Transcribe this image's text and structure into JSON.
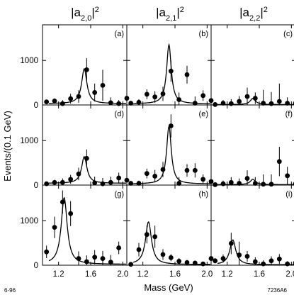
{
  "figure": {
    "column_titles": [
      {
        "base": "|a",
        "sub": "2,0",
        "close": "|",
        "sup": "2"
      },
      {
        "base": "|a",
        "sub": "2,1",
        "close": "|",
        "sup": "2"
      },
      {
        "base": "|a",
        "sub": "2,2",
        "close": "|",
        "sup": "2"
      }
    ],
    "ylabel": "Events/(0.1 GeV)",
    "xlabel": "Mass  (GeV)",
    "footer_left": "6-96",
    "footer_right": "7236A6"
  },
  "chart_data": {
    "type": "scatter",
    "layout": "3x3 grid",
    "xlim": [
      1.0,
      2.05
    ],
    "ylim": [
      0,
      1800
    ],
    "x_ticks": [
      1.2,
      1.6,
      2.0
    ],
    "x_tick_labels": [
      "1.2",
      "1.6",
      "2.0"
    ],
    "y_ticks": [
      0,
      1000
    ],
    "y_tick_labels": [
      "0",
      "1000"
    ],
    "xlabel": "Mass  (GeV)",
    "ylabel": "Events/(0.1 GeV)",
    "panels": [
      {
        "label": "(a)",
        "peak": 1.52,
        "width": 0.08,
        "amp": 780,
        "tail": 30,
        "points": [
          {
            "x": 1.05,
            "y": 70,
            "err": 40
          },
          {
            "x": 1.15,
            "y": 90,
            "err": 55
          },
          {
            "x": 1.25,
            "y": 30,
            "err": 80
          },
          {
            "x": 1.35,
            "y": 140,
            "err": 110
          },
          {
            "x": 1.45,
            "y": 190,
            "err": 140
          },
          {
            "x": 1.55,
            "y": 790,
            "err": 260
          },
          {
            "x": 1.65,
            "y": 280,
            "err": 200
          },
          {
            "x": 1.75,
            "y": 440,
            "err": 350
          },
          {
            "x": 1.85,
            "y": 50,
            "err": 120
          },
          {
            "x": 1.95,
            "y": 30,
            "err": 80
          },
          {
            "x": 2.05,
            "y": 150,
            "err": 80
          }
        ]
      },
      {
        "label": "(b)",
        "peak": 1.525,
        "width": 0.07,
        "amp": 1330,
        "tail": 25,
        "points": [
          {
            "x": 1.05,
            "y": 40,
            "err": 50
          },
          {
            "x": 1.15,
            "y": 60,
            "err": 70
          },
          {
            "x": 1.25,
            "y": 240,
            "err": 110
          },
          {
            "x": 1.35,
            "y": 180,
            "err": 130
          },
          {
            "x": 1.45,
            "y": 250,
            "err": 160
          },
          {
            "x": 1.55,
            "y": 760,
            "err": 240
          },
          {
            "x": 1.65,
            "y": 120,
            "err": 160
          },
          {
            "x": 1.75,
            "y": 680,
            "err": 200
          },
          {
            "x": 1.85,
            "y": 40,
            "err": 150
          },
          {
            "x": 1.95,
            "y": 210,
            "err": 120
          },
          {
            "x": 2.05,
            "y": 100,
            "err": 80
          }
        ]
      },
      {
        "label": "(c)",
        "peak": 1.52,
        "width": 0.08,
        "amp": 140,
        "tail": 8,
        "points": [
          {
            "x": 1.05,
            "y": 10,
            "err": 40
          },
          {
            "x": 1.15,
            "y": 40,
            "err": 70
          },
          {
            "x": 1.25,
            "y": 30,
            "err": 100
          },
          {
            "x": 1.35,
            "y": 80,
            "err": 120
          },
          {
            "x": 1.45,
            "y": 190,
            "err": 200
          },
          {
            "x": 1.55,
            "y": 150,
            "err": 130
          },
          {
            "x": 1.65,
            "y": 40,
            "err": 300
          },
          {
            "x": 1.75,
            "y": 30,
            "err": 260
          },
          {
            "x": 1.85,
            "y": 80,
            "err": 400
          },
          {
            "x": 1.95,
            "y": 40,
            "err": 130
          },
          {
            "x": 2.05,
            "y": 40,
            "err": 150
          }
        ]
      },
      {
        "label": "(d)",
        "peak": 1.52,
        "width": 0.08,
        "amp": 600,
        "tail": 40,
        "points": [
          {
            "x": 1.05,
            "y": 30,
            "err": 40
          },
          {
            "x": 1.15,
            "y": 60,
            "err": 60
          },
          {
            "x": 1.25,
            "y": 60,
            "err": 90
          },
          {
            "x": 1.35,
            "y": 130,
            "err": 100
          },
          {
            "x": 1.45,
            "y": 250,
            "err": 140
          },
          {
            "x": 1.55,
            "y": 600,
            "err": 200
          },
          {
            "x": 1.65,
            "y": 50,
            "err": 140
          },
          {
            "x": 1.75,
            "y": 30,
            "err": 130
          },
          {
            "x": 1.85,
            "y": 60,
            "err": 130
          },
          {
            "x": 1.95,
            "y": 160,
            "err": 120
          },
          {
            "x": 2.05,
            "y": 110,
            "err": 90
          }
        ]
      },
      {
        "label": "(e)",
        "peak": 1.525,
        "width": 0.07,
        "amp": 1300,
        "tail": 25,
        "points": [
          {
            "x": 1.05,
            "y": 40,
            "err": 40
          },
          {
            "x": 1.15,
            "y": 40,
            "err": 60
          },
          {
            "x": 1.25,
            "y": 260,
            "err": 110
          },
          {
            "x": 1.35,
            "y": 200,
            "err": 140
          },
          {
            "x": 1.45,
            "y": 350,
            "err": 170
          },
          {
            "x": 1.55,
            "y": 1330,
            "err": 260
          },
          {
            "x": 1.65,
            "y": 40,
            "err": 140
          },
          {
            "x": 1.75,
            "y": 330,
            "err": 140
          },
          {
            "x": 1.85,
            "y": 330,
            "err": 160
          },
          {
            "x": 1.95,
            "y": 130,
            "err": 110
          },
          {
            "x": 2.05,
            "y": 80,
            "err": 80
          }
        ]
      },
      {
        "label": "(f)",
        "peak": 1.52,
        "width": 0.08,
        "amp": 120,
        "tail": 10,
        "points": [
          {
            "x": 1.05,
            "y": 10,
            "err": 40
          },
          {
            "x": 1.15,
            "y": 30,
            "err": 70
          },
          {
            "x": 1.25,
            "y": 60,
            "err": 120
          },
          {
            "x": 1.35,
            "y": 40,
            "err": 110
          },
          {
            "x": 1.45,
            "y": 150,
            "err": 180
          },
          {
            "x": 1.55,
            "y": 40,
            "err": 140
          },
          {
            "x": 1.65,
            "y": 20,
            "err": 220
          },
          {
            "x": 1.75,
            "y": 20,
            "err": 220
          },
          {
            "x": 1.85,
            "y": 530,
            "err": 330
          },
          {
            "x": 1.95,
            "y": 210,
            "err": 200
          },
          {
            "x": 2.05,
            "y": 30,
            "err": 120
          }
        ]
      },
      {
        "label": "(g)",
        "peak": 1.27,
        "width": 0.09,
        "amp": 1500,
        "tail": 20,
        "points": [
          {
            "x": 1.05,
            "y": 300,
            "err": 140
          },
          {
            "x": 1.15,
            "y": 850,
            "err": 240
          },
          {
            "x": 1.25,
            "y": 1420,
            "err": 260
          },
          {
            "x": 1.35,
            "y": 1160,
            "err": 280
          },
          {
            "x": 1.45,
            "y": 150,
            "err": 160
          },
          {
            "x": 1.55,
            "y": 80,
            "err": 140
          },
          {
            "x": 1.65,
            "y": 180,
            "err": 160
          },
          {
            "x": 1.75,
            "y": 150,
            "err": 170
          },
          {
            "x": 1.85,
            "y": 70,
            "err": 160
          },
          {
            "x": 1.95,
            "y": 390,
            "err": 140
          }
        ]
      },
      {
        "label": "(h)",
        "peak": 1.27,
        "width": 0.09,
        "amp": 960,
        "tail": 15,
        "points": [
          {
            "x": 1.05,
            "y": 20,
            "err": 40
          },
          {
            "x": 1.15,
            "y": 350,
            "err": 150
          },
          {
            "x": 1.25,
            "y": 690,
            "err": 200
          },
          {
            "x": 1.35,
            "y": 640,
            "err": 250
          },
          {
            "x": 1.45,
            "y": 240,
            "err": 120
          },
          {
            "x": 1.55,
            "y": 170,
            "err": 80
          },
          {
            "x": 1.65,
            "y": 90,
            "err": 70
          },
          {
            "x": 1.75,
            "y": 60,
            "err": 60
          },
          {
            "x": 1.85,
            "y": 50,
            "err": 50
          },
          {
            "x": 1.95,
            "y": 30,
            "err": 40
          },
          {
            "x": 2.05,
            "y": 150,
            "err": 80
          }
        ]
      },
      {
        "label": "(i)",
        "peak": 1.27,
        "width": 0.09,
        "amp": 560,
        "tail": 10,
        "points": [
          {
            "x": 1.05,
            "y": 100,
            "err": 60
          },
          {
            "x": 1.15,
            "y": 150,
            "err": 90
          },
          {
            "x": 1.25,
            "y": 490,
            "err": 240
          },
          {
            "x": 1.35,
            "y": 230,
            "err": 300
          },
          {
            "x": 1.45,
            "y": 200,
            "err": 120
          },
          {
            "x": 1.55,
            "y": 80,
            "err": 100
          },
          {
            "x": 1.65,
            "y": 30,
            "err": 80
          },
          {
            "x": 1.75,
            "y": 100,
            "err": 100
          },
          {
            "x": 1.85,
            "y": 140,
            "err": 110
          },
          {
            "x": 1.95,
            "y": 30,
            "err": 60
          },
          {
            "x": 2.05,
            "y": 50,
            "err": 60
          }
        ]
      }
    ]
  }
}
